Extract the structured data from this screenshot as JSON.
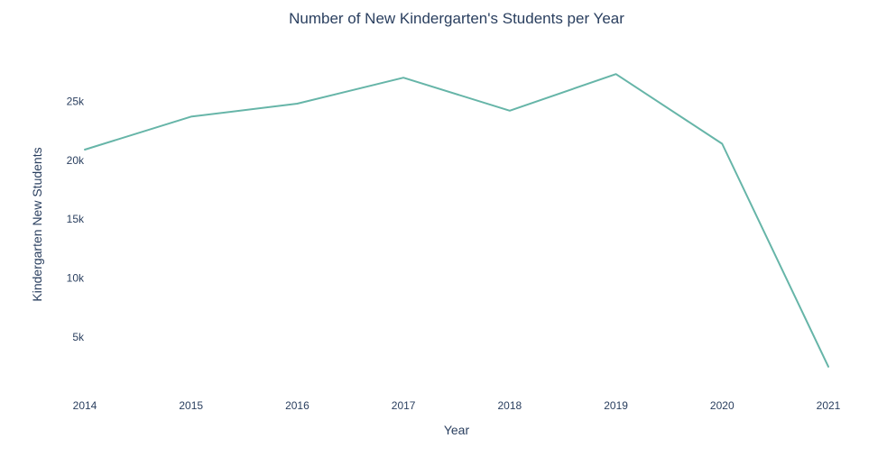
{
  "chart_data": {
    "type": "line",
    "title": "Number of New Kindergarten's Students per Year",
    "xlabel": "Year",
    "ylabel": "Kindergarten New Students",
    "x": [
      "2014",
      "2015",
      "2016",
      "2017",
      "2018",
      "2019",
      "2020",
      "2021"
    ],
    "series": [
      {
        "values": [
          20900,
          23700,
          24800,
          27000,
          24200,
          27300,
          21400,
          2500
        ],
        "color": "#66b5a8"
      }
    ],
    "y_ticks": [
      {
        "value": 5000,
        "label": "5k"
      },
      {
        "value": 10000,
        "label": "10k"
      },
      {
        "value": 15000,
        "label": "15k"
      },
      {
        "value": 20000,
        "label": "20k"
      },
      {
        "value": 25000,
        "label": "25k"
      }
    ],
    "ylim": [
      1339,
      29000
    ],
    "grid": false,
    "legend": "none",
    "background": "#ffffff",
    "text_color": "#2a3f5f"
  }
}
